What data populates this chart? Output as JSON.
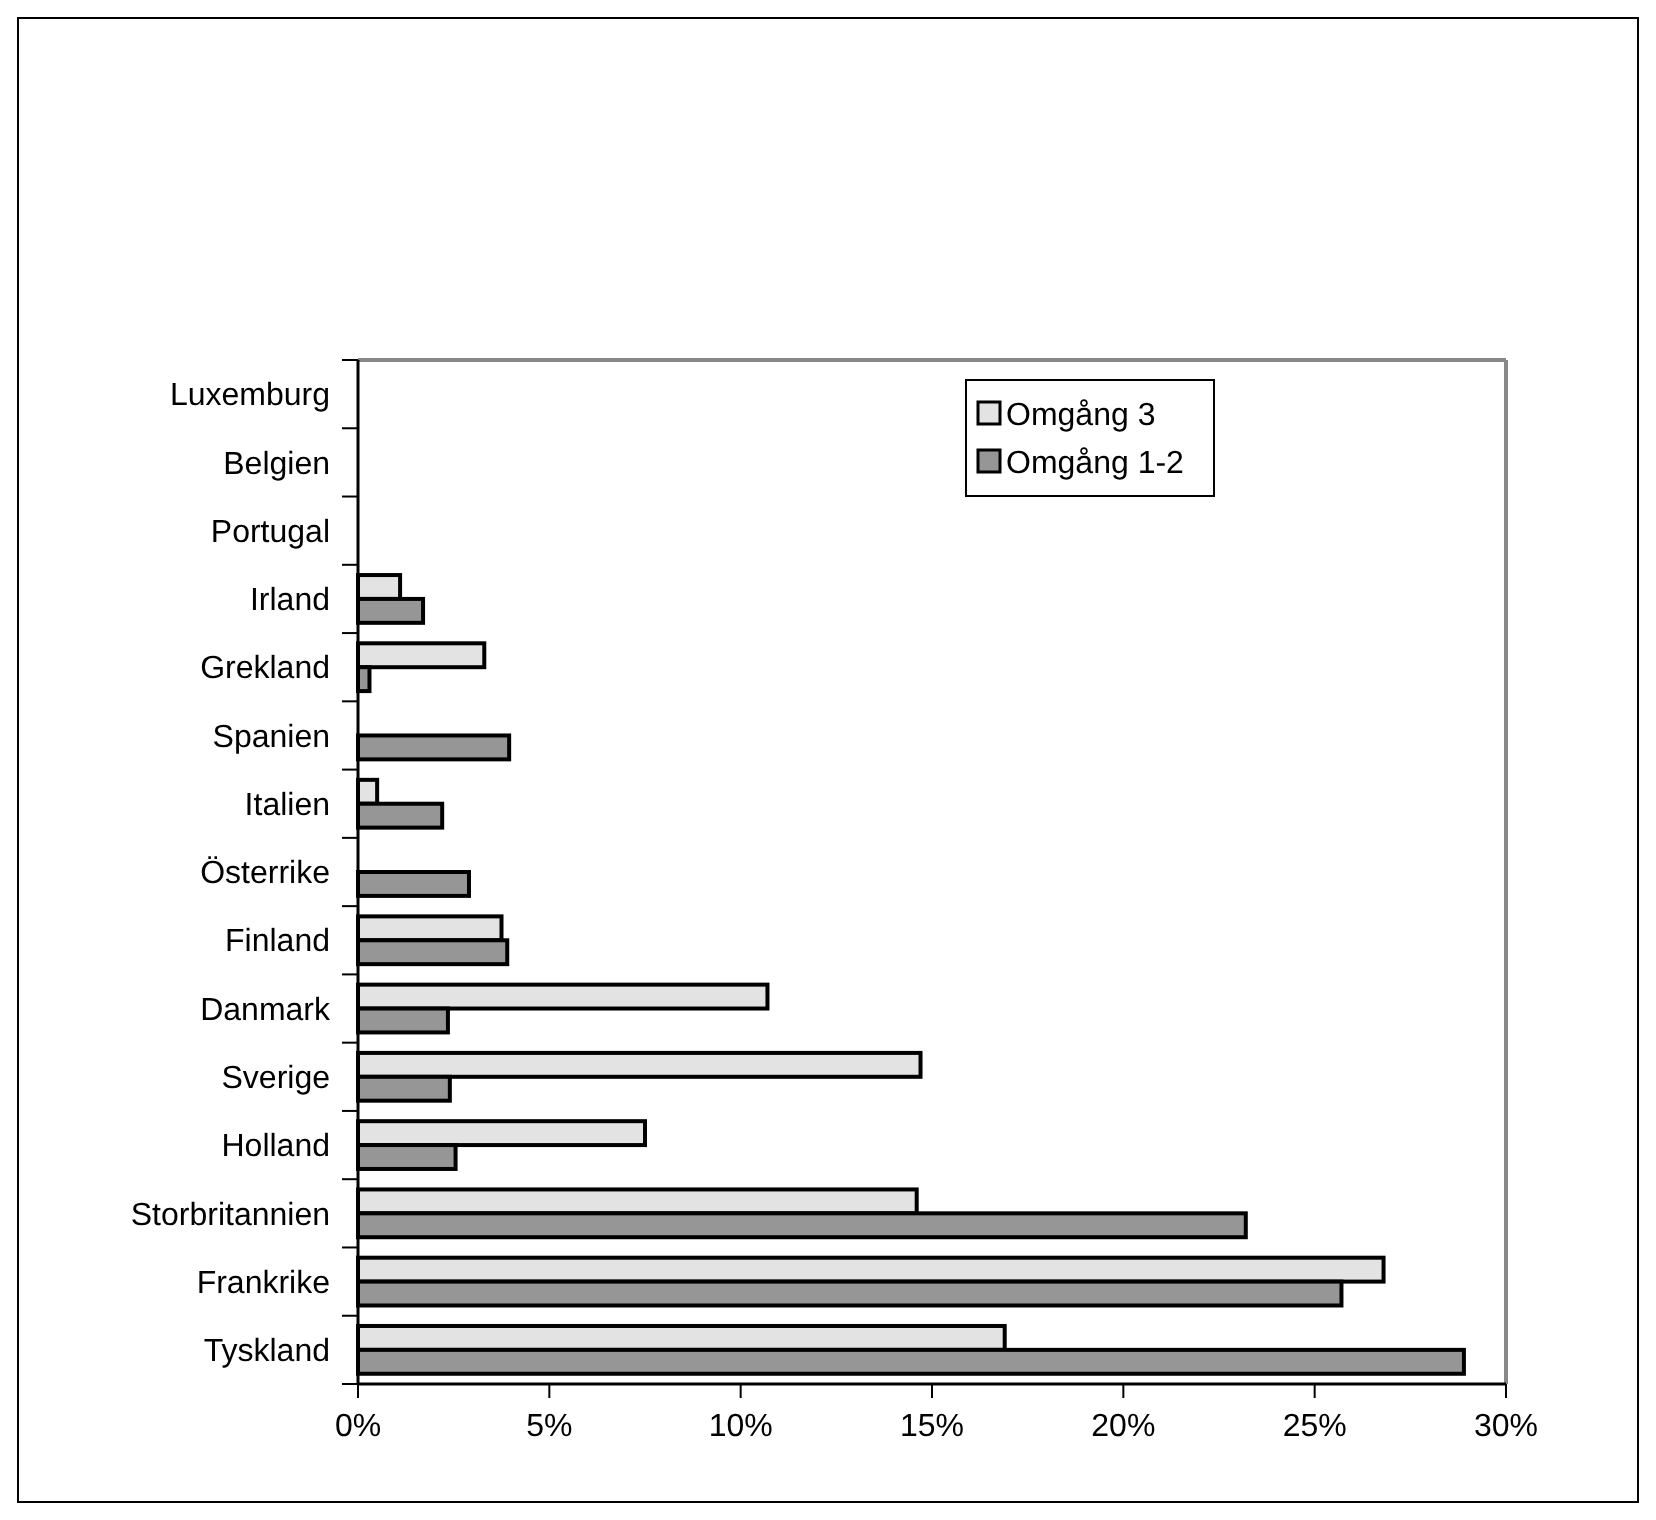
{
  "chart_data": {
    "type": "bar",
    "orientation": "horizontal",
    "categories": [
      "Luxemburg",
      "Belgien",
      "Portugal",
      "Irland",
      "Grekland",
      "Spanien",
      "Italien",
      "Österrike",
      "Finland",
      "Danmark",
      "Sverige",
      "Holland",
      "Storbritannien",
      "Frankrike",
      "Tyskland"
    ],
    "series": [
      {
        "name": "Omgång 3",
        "color": "#e3e3e3",
        "values": [
          0,
          0,
          0,
          1.1,
          3.3,
          0,
          0.5,
          0,
          3.75,
          10.7,
          14.7,
          7.5,
          14.6,
          26.8,
          16.9
        ]
      },
      {
        "name": "Omgång 1-2",
        "color": "#969696",
        "values": [
          0,
          0,
          0,
          1.7,
          0.3,
          3.95,
          2.2,
          2.9,
          3.9,
          2.35,
          2.4,
          2.55,
          23.2,
          25.7,
          28.9
        ]
      }
    ],
    "xlim": [
      0,
      30
    ],
    "xticks": [
      {
        "value": 0,
        "label": "0%"
      },
      {
        "value": 5,
        "label": "5%"
      },
      {
        "value": 10,
        "label": "10%"
      },
      {
        "value": 15,
        "label": "15%"
      },
      {
        "value": 20,
        "label": "20%"
      },
      {
        "value": 25,
        "label": "25%"
      },
      {
        "value": 30,
        "label": "30%"
      }
    ],
    "grid": false,
    "legend": "top right"
  }
}
